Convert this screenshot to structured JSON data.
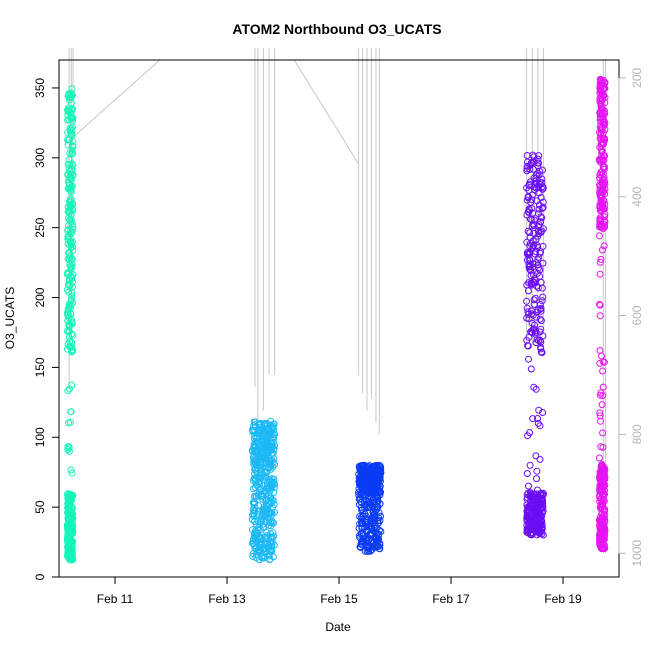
{
  "chart_data": {
    "type": "scatter",
    "title": "ATOM2 Northbound O3_UCATS",
    "xlabel": "Date",
    "ylabel": "O3_UCATS",
    "x_ticks": [
      {
        "day": 11,
        "label": "Feb 11"
      },
      {
        "day": 13,
        "label": "Feb 13"
      },
      {
        "day": 15,
        "label": "Feb 15"
      },
      {
        "day": 17,
        "label": "Feb 17"
      },
      {
        "day": 19,
        "label": "Feb 19"
      }
    ],
    "xlim": [
      "Feb 10.0",
      "Feb 20.0"
    ],
    "ylim": [
      0,
      370
    ],
    "y_ticks": [
      0,
      50,
      100,
      150,
      200,
      250,
      300,
      350
    ],
    "y2_ticks": [
      200,
      400,
      600,
      800,
      1000
    ],
    "y2lim": [
      1040,
      170
    ],
    "y2_note": "secondary axis (pressure, inverted) shown in grey, unlabeled",
    "grid": false,
    "legend": "none",
    "colors": {
      "flight1": "#16f5b9",
      "flight2": "#1bb8f6",
      "flight3": "#0a3cf5",
      "flight4": "#6a0ef5",
      "flight5": "#e614f2",
      "pressure_trace": "#c8c8c8",
      "axis": "#000000",
      "axis2": "#b4b4b4"
    },
    "flights": [
      {
        "date": "Feb 10",
        "day_start": 10.15,
        "day_end": 10.25,
        "o3_min": 12,
        "o3_max": 358,
        "dense_low": [
          12,
          60
        ],
        "dense_high": [
          160,
          350
        ],
        "color": "#16f5b9"
      },
      {
        "date": "Feb 13",
        "day_start": 13.45,
        "day_end": 13.85,
        "o3_min": 12,
        "o3_max": 112,
        "dense_low": [
          12,
          80
        ],
        "dense_high": [
          80,
          110
        ],
        "color": "#1bb8f6"
      },
      {
        "date": "Feb 15",
        "day_start": 15.35,
        "day_end": 15.75,
        "o3_min": 18,
        "o3_max": 80,
        "dense_low": [
          18,
          80
        ],
        "dense_high": [
          60,
          80
        ],
        "color": "#0a3cf5"
      },
      {
        "date": "Feb 18",
        "day_start": 18.35,
        "day_end": 18.65,
        "o3_min": 30,
        "o3_max": 302,
        "dense_low": [
          30,
          60
        ],
        "dense_high": [
          160,
          302
        ],
        "color": "#6a0ef5"
      },
      {
        "date": "Feb 19",
        "day_start": 19.65,
        "day_end": 19.75,
        "o3_min": 20,
        "o3_max": 357,
        "dense_low": [
          20,
          80
        ],
        "dense_high": [
          250,
          357
        ],
        "color": "#e614f2"
      }
    ]
  }
}
